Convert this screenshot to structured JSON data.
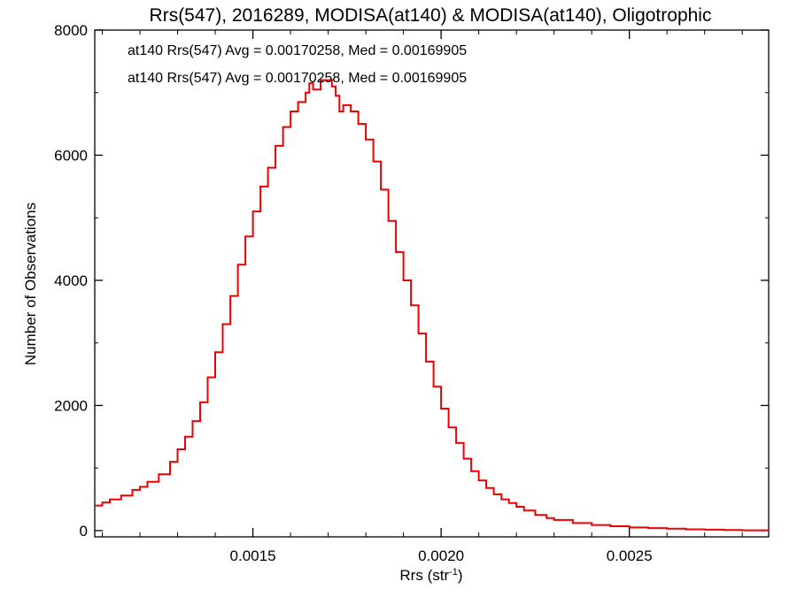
{
  "chart_data": {
    "type": "line",
    "title": "Rrs(547), 2016289, MODISA(at140) & MODISA(at140), Oligotrophic",
    "xlabel": "Rrs (str",
    "xlabel_exponent": "-1",
    "xlabel_close": ")",
    "ylabel": "Number of Observations",
    "xlim": [
      0.00108,
      0.00287
    ],
    "ylim": [
      -100,
      8000
    ],
    "grid": false,
    "step": true,
    "x_ticks": [
      {
        "value": 0.0015,
        "label": "0.0015"
      },
      {
        "value": 0.002,
        "label": "0.0020"
      },
      {
        "value": 0.0025,
        "label": "0.0025"
      }
    ],
    "y_ticks": [
      {
        "value": 0,
        "label": "0"
      },
      {
        "value": 2000,
        "label": "2000"
      },
      {
        "value": 4000,
        "label": "4000"
      },
      {
        "value": 6000,
        "label": "6000"
      },
      {
        "value": 8000,
        "label": "8000"
      }
    ],
    "annotations": [
      {
        "text": "at140 Rrs(547) Avg = 0.00170258, Med = 0.00169905",
        "color": "#000000"
      },
      {
        "text": "at140 Rrs(547) Avg = 0.00170258, Med = 0.00169905",
        "color": "#ee0000"
      }
    ],
    "series": [
      {
        "color": "#ee0000",
        "x": [
          0.00108,
          0.0011,
          0.00112,
          0.00115,
          0.00118,
          0.0012,
          0.00122,
          0.00125,
          0.00128,
          0.0013,
          0.00132,
          0.00134,
          0.00136,
          0.00138,
          0.0014,
          0.00142,
          0.00144,
          0.00146,
          0.00148,
          0.0015,
          0.00152,
          0.00154,
          0.00156,
          0.00158,
          0.0016,
          0.00162,
          0.00164,
          0.00165,
          0.00166,
          0.00168,
          0.0017,
          0.00171,
          0.00172,
          0.00173,
          0.00174,
          0.00176,
          0.00178,
          0.0018,
          0.00182,
          0.00184,
          0.00186,
          0.00188,
          0.0019,
          0.00192,
          0.00194,
          0.00196,
          0.00198,
          0.002,
          0.00202,
          0.00204,
          0.00206,
          0.00208,
          0.0021,
          0.00212,
          0.00214,
          0.00216,
          0.00218,
          0.0022,
          0.00222,
          0.00225,
          0.00228,
          0.0023,
          0.00235,
          0.0024,
          0.00245,
          0.0025,
          0.00255,
          0.0026,
          0.00265,
          0.0027,
          0.00275,
          0.0028,
          0.00287
        ],
        "values": [
          400,
          450,
          500,
          560,
          650,
          700,
          780,
          900,
          1100,
          1300,
          1500,
          1750,
          2050,
          2450,
          2850,
          3300,
          3750,
          4250,
          4700,
          5100,
          5500,
          5800,
          6150,
          6450,
          6700,
          6850,
          7000,
          7150,
          7050,
          7200,
          7200,
          7100,
          6950,
          6700,
          6800,
          6700,
          6500,
          6250,
          5900,
          5450,
          4950,
          4450,
          4000,
          3600,
          3150,
          2700,
          2300,
          1950,
          1650,
          1400,
          1150,
          950,
          800,
          680,
          580,
          500,
          440,
          380,
          320,
          250,
          200,
          170,
          120,
          90,
          70,
          50,
          40,
          30,
          20,
          15,
          10,
          5,
          3
        ]
      }
    ]
  }
}
